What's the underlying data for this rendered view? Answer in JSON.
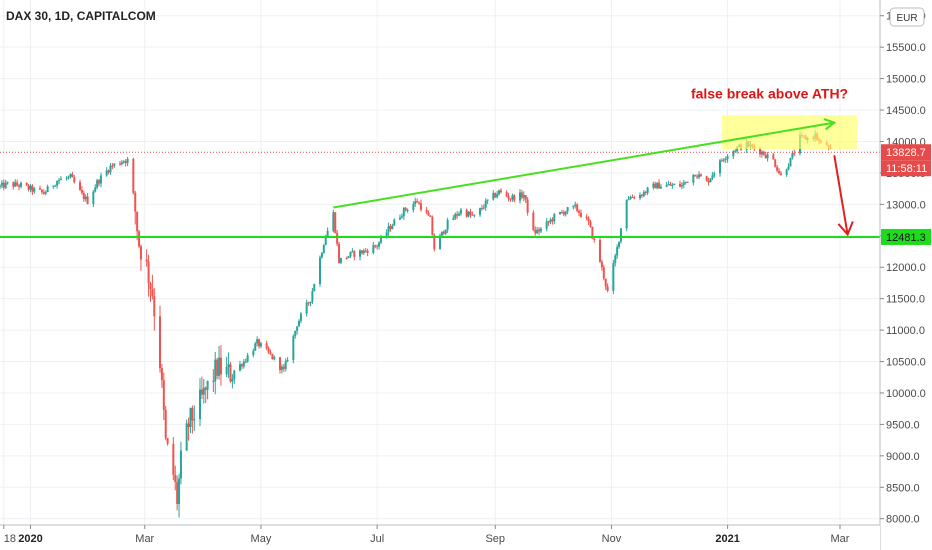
{
  "chart_data": {
    "type": "candlestick",
    "title": "DAX 30, 1D, CAPITALCOM",
    "currency": "EUR",
    "ylim": [
      7900,
      16250
    ],
    "y_ticks": [
      8000,
      8500,
      9000,
      9500,
      10000,
      10500,
      11000,
      11500,
      12000,
      12500,
      13000,
      13500,
      14000,
      14500,
      15000,
      15500,
      16000
    ],
    "y_tick_labels": [
      "8000.0",
      "8500.0",
      "9000.0",
      "9500.0",
      "10000.0",
      "10500.0",
      "11000.0",
      "11500.0",
      "12000.0",
      "12500.0",
      "13000.0",
      "13500.0",
      "14000.0",
      "14500.0",
      "15000.0",
      "15500.0",
      "16000.0"
    ],
    "x_range": [
      "2019-12-16",
      "2021-03-22"
    ],
    "x_ticks": [
      {
        "label": "18",
        "date": "2019-12-18",
        "year": false
      },
      {
        "label": "2020",
        "date": "2020-01-01",
        "year": true
      },
      {
        "label": "Mar",
        "date": "2020-03-01",
        "year": false
      },
      {
        "label": "May",
        "date": "2020-05-01",
        "year": false
      },
      {
        "label": "Jul",
        "date": "2020-07-01",
        "year": false
      },
      {
        "label": "Sep",
        "date": "2020-09-01",
        "year": false
      },
      {
        "label": "Nov",
        "date": "2020-11-01",
        "year": false
      },
      {
        "label": "2021",
        "date": "2021-01-01",
        "year": true
      },
      {
        "label": "Mar",
        "date": "2021-03-01",
        "year": false
      }
    ],
    "closes": [
      [
        "2019-12-16",
        13280
      ],
      [
        "2019-12-20",
        13320
      ],
      [
        "2019-12-27",
        13300
      ],
      [
        "2020-01-03",
        13220
      ],
      [
        "2020-01-08",
        13180
      ],
      [
        "2020-01-15",
        13380
      ],
      [
        "2020-01-22",
        13430
      ],
      [
        "2020-01-28",
        13150
      ],
      [
        "2020-01-31",
        13050
      ],
      [
        "2020-02-05",
        13350
      ],
      [
        "2020-02-12",
        13600
      ],
      [
        "2020-02-19",
        13700
      ],
      [
        "2020-02-21",
        13700
      ],
      [
        "2020-02-24",
        13150
      ],
      [
        "2020-02-27",
        12380
      ],
      [
        "2020-03-02",
        12000
      ],
      [
        "2020-03-05",
        11600
      ],
      [
        "2020-03-09",
        10500
      ],
      [
        "2020-03-12",
        9200
      ],
      [
        "2020-03-16",
        8700
      ],
      [
        "2020-03-18",
        8300
      ],
      [
        "2020-03-20",
        8900
      ],
      [
        "2020-03-24",
        9500
      ],
      [
        "2020-03-31",
        9900
      ],
      [
        "2020-04-08",
        10400
      ],
      [
        "2020-04-15",
        10300
      ],
      [
        "2020-04-22",
        10500
      ],
      [
        "2020-04-29",
        10800
      ],
      [
        "2020-05-06",
        10600
      ],
      [
        "2020-05-13",
        10350
      ],
      [
        "2020-05-20",
        11100
      ],
      [
        "2020-05-27",
        11500
      ],
      [
        "2020-06-03",
        12400
      ],
      [
        "2020-06-08",
        12850
      ],
      [
        "2020-06-11",
        12100
      ],
      [
        "2020-06-17",
        12200
      ],
      [
        "2020-06-24",
        12250
      ],
      [
        "2020-07-01",
        12350
      ],
      [
        "2020-07-08",
        12650
      ],
      [
        "2020-07-15",
        12900
      ],
      [
        "2020-07-22",
        13050
      ],
      [
        "2020-07-29",
        12750
      ],
      [
        "2020-07-31",
        12300
      ],
      [
        "2020-08-07",
        12700
      ],
      [
        "2020-08-14",
        12900
      ],
      [
        "2020-08-21",
        12800
      ],
      [
        "2020-08-28",
        13050
      ],
      [
        "2020-09-03",
        13200
      ],
      [
        "2020-09-09",
        13100
      ],
      [
        "2020-09-16",
        13150
      ],
      [
        "2020-09-21",
        12550
      ],
      [
        "2020-09-25",
        12600
      ],
      [
        "2020-10-02",
        12800
      ],
      [
        "2020-10-08",
        12900
      ],
      [
        "2020-10-13",
        12950
      ],
      [
        "2020-10-20",
        12700
      ],
      [
        "2020-10-26",
        12100
      ],
      [
        "2020-10-30",
        11600
      ],
      [
        "2020-11-04",
        12300
      ],
      [
        "2020-11-09",
        13100
      ],
      [
        "2020-11-16",
        13150
      ],
      [
        "2020-11-24",
        13300
      ],
      [
        "2020-12-01",
        13300
      ],
      [
        "2020-12-08",
        13300
      ],
      [
        "2020-12-15",
        13500
      ],
      [
        "2020-12-21",
        13350
      ],
      [
        "2020-12-30",
        13750
      ],
      [
        "2021-01-06",
        13900
      ],
      [
        "2021-01-11",
        13950
      ],
      [
        "2021-01-18",
        13850
      ],
      [
        "2021-01-25",
        13700
      ],
      [
        "2021-01-29",
        13450
      ],
      [
        "2021-02-03",
        13700
      ],
      [
        "2021-02-08",
        14050
      ],
      [
        "2021-02-12",
        14050
      ],
      [
        "2021-02-16",
        14100
      ],
      [
        "2021-02-19",
        13950
      ],
      [
        "2021-02-22",
        13950
      ],
      [
        "2021-02-24",
        13830
      ]
    ],
    "annotations": {
      "trendline": {
        "from": [
          "2020-06-08",
          12950
        ],
        "to": [
          "2021-02-26",
          14300
        ],
        "color": "#48e01e",
        "arrow": true
      },
      "support_line": {
        "value": 12481.3,
        "label": "12481.3",
        "color": "#1ddc1d"
      },
      "price_line": {
        "value": 13828.7,
        "label": "13828.7",
        "countdown": "11:58:11",
        "color": "#e64a4a"
      },
      "highlight_zone": {
        "x_from": "2020-12-29",
        "x_to": "2021-03-10",
        "y_from": 13880,
        "y_to": 14420,
        "color": "#ffff66"
      },
      "down_arrow": {
        "from": [
          "2021-02-26",
          13780
        ],
        "to": [
          "2021-03-05",
          12520
        ],
        "color": "#e02020"
      },
      "text": "false break above ATH?",
      "text_color": "#e01414"
    }
  }
}
